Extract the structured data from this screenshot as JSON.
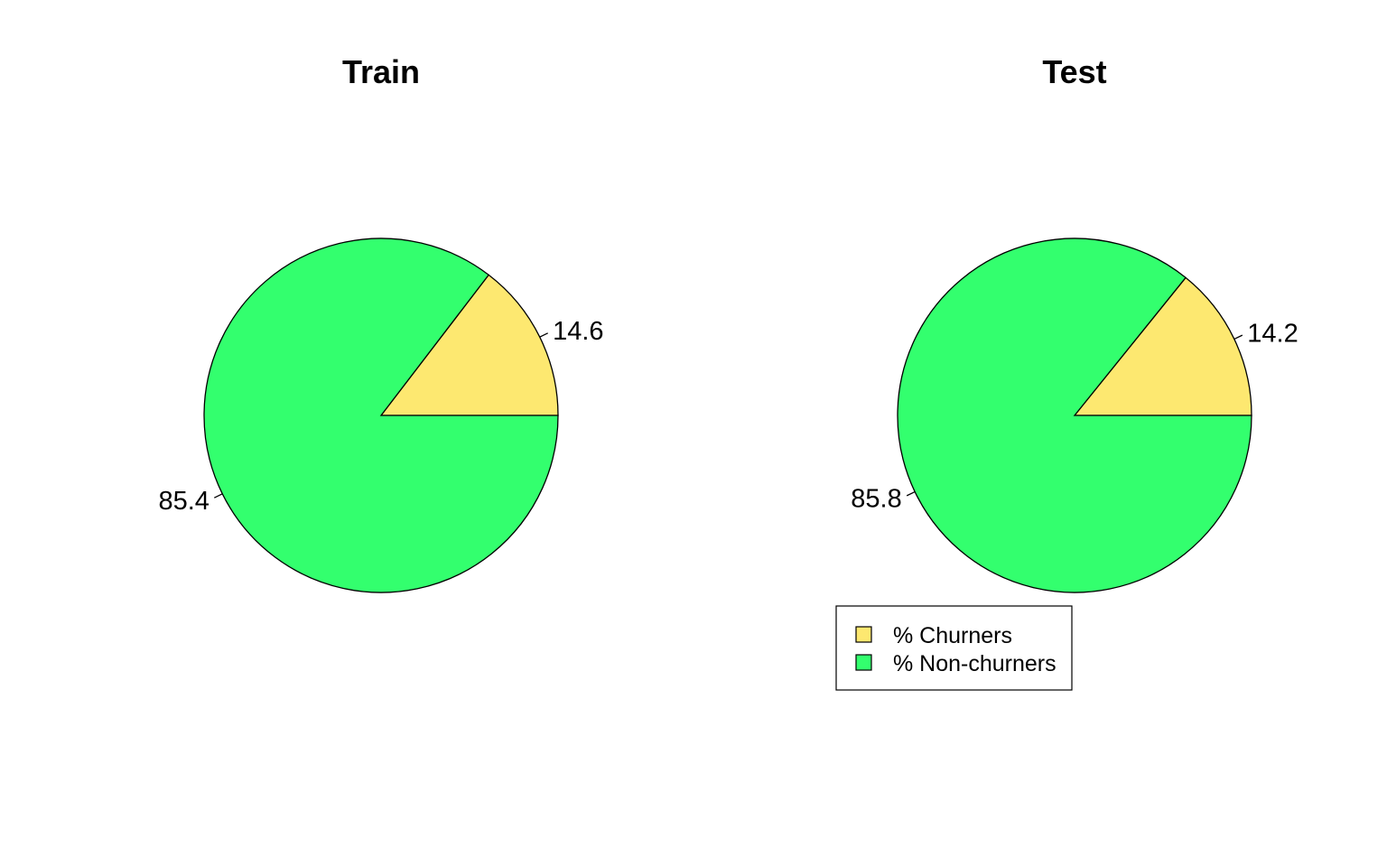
{
  "colors": {
    "churners": "#FDE870",
    "non_churners": "#33FF6E",
    "stroke": "#000000",
    "background": "#FFFFFF"
  },
  "chart_data": [
    {
      "type": "pie",
      "title": "Train",
      "slices": [
        {
          "category": "churners",
          "value": 14.6,
          "label": "14.6"
        },
        {
          "category": "non_churners",
          "value": 85.4,
          "label": "85.4"
        }
      ]
    },
    {
      "type": "pie",
      "title": "Test",
      "slices": [
        {
          "category": "churners",
          "value": 14.2,
          "label": "14.2"
        },
        {
          "category": "non_churners",
          "value": 85.8,
          "label": "85.8"
        }
      ]
    }
  ],
  "legend": {
    "placement": "below right pie",
    "items": [
      {
        "category": "churners",
        "label": "% Churners"
      },
      {
        "category": "non_churners",
        "label": "% Non-churners"
      }
    ]
  }
}
